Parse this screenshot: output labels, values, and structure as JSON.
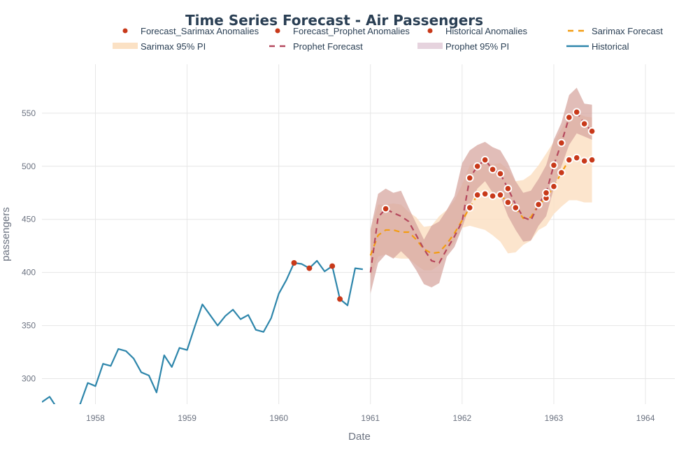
{
  "chart_data": {
    "type": "line",
    "title": "Time Series Forecast - Air Passengers",
    "xlabel": "Date",
    "ylabel": "passengers",
    "xlim": [
      "1957-06",
      "1964-04"
    ],
    "ylim": [
      276,
      596
    ],
    "x_ticks": [
      "1958",
      "1959",
      "1960",
      "1961",
      "1962",
      "1963",
      "1964"
    ],
    "y_ticks": [
      300,
      350,
      400,
      450,
      500,
      550
    ],
    "grid": true,
    "legend_position": "top",
    "legend": [
      {
        "key": "sarimax_anom",
        "label": "Forecast_Sarimax Anomalies",
        "kind": "dot"
      },
      {
        "key": "prophet_anom",
        "label": "Forecast_Prophet Anomalies",
        "kind": "dot"
      },
      {
        "key": "hist_anom",
        "label": "Historical Anomalies",
        "kind": "dot"
      },
      {
        "key": "sarimax",
        "label": "Sarimax Forecast",
        "kind": "dash"
      },
      {
        "key": "sarimax_pi",
        "label": "Sarimax 95% PI",
        "kind": "band"
      },
      {
        "key": "prophet",
        "label": "Prophet Forecast",
        "kind": "dash"
      },
      {
        "key": "prophet_pi",
        "label": "Prophet 95% PI",
        "kind": "band"
      },
      {
        "key": "historical",
        "label": "Historical",
        "kind": "line"
      }
    ],
    "colors": {
      "historical": "#2e86ab",
      "anomaly": "#c8391a",
      "sarimax": "#f39c12",
      "prophet": "#b5485d",
      "sarimax_pi": "#fbe1c4",
      "prophet_pi": "#e6d3de"
    },
    "historical": {
      "start": "1957-06",
      "values": [
        278,
        283,
        272,
        268,
        270,
        276,
        296,
        293,
        314,
        312,
        328,
        326,
        319,
        306,
        303,
        287,
        322,
        311,
        329,
        327,
        349,
        370,
        360,
        350,
        359,
        365,
        356,
        360,
        346,
        344,
        357,
        380,
        393,
        409,
        408,
        404,
        411,
        401,
        406,
        375,
        369,
        404,
        403
      ]
    },
    "historical_anomalies": [
      {
        "x": "1960-03",
        "y": 409
      },
      {
        "x": "1960-05",
        "y": 404
      },
      {
        "x": "1960-08",
        "y": 406
      },
      {
        "x": "1960-09",
        "y": 375
      }
    ],
    "forecast_start": "1961-01",
    "sarimax_forecast": [
      416,
      435,
      440,
      440,
      438,
      438,
      431,
      422,
      418,
      419,
      427,
      437,
      449,
      461,
      473,
      474,
      472,
      473,
      466,
      461,
      451,
      452,
      464,
      470,
      481,
      494,
      506,
      508,
      505,
      506
    ],
    "sarimax_lower": [
      395,
      415,
      417,
      414,
      413,
      413,
      407,
      402,
      402,
      407,
      418,
      429,
      442,
      444,
      442,
      440,
      435,
      429,
      418,
      419,
      426,
      430,
      440,
      444,
      455,
      462,
      468,
      468,
      466,
      466
    ],
    "sarimax_upper": [
      441,
      464,
      464,
      465,
      464,
      457,
      452,
      443,
      444,
      453,
      459,
      468,
      483,
      501,
      504,
      504,
      502,
      503,
      497,
      486,
      487,
      492,
      501,
      512,
      523,
      535,
      547,
      550,
      547,
      546
    ],
    "prophet_forecast": [
      400,
      452,
      460,
      456,
      453,
      448,
      435,
      422,
      411,
      409,
      422,
      434,
      448,
      489,
      500,
      506,
      497,
      493,
      479,
      464,
      452,
      449,
      464,
      475,
      501,
      522,
      546,
      551,
      540,
      533
    ],
    "prophet_lower": [
      380,
      409,
      417,
      413,
      420,
      413,
      402,
      389,
      386,
      390,
      415,
      424,
      442,
      463,
      479,
      486,
      475,
      472,
      453,
      440,
      429,
      430,
      444,
      453,
      479,
      500,
      520,
      531,
      528,
      525
    ],
    "prophet_upper": [
      440,
      474,
      479,
      475,
      477,
      461,
      446,
      431,
      444,
      448,
      459,
      472,
      503,
      515,
      520,
      523,
      518,
      515,
      503,
      486,
      475,
      477,
      488,
      501,
      525,
      541,
      567,
      574,
      559,
      558
    ],
    "sarimax_anomaly_months": [
      "1962-02",
      "1962-03",
      "1962-04",
      "1962-05",
      "1962-06",
      "1962-07",
      "1962-08",
      "1962-11",
      "1962-12",
      "1963-01",
      "1963-02",
      "1963-03",
      "1963-04",
      "1963-05",
      "1963-06"
    ],
    "prophet_anomaly_months": [
      "1961-03",
      "1962-02",
      "1962-03",
      "1962-04",
      "1962-05",
      "1962-06",
      "1962-07",
      "1962-12",
      "1963-01",
      "1963-02",
      "1963-03",
      "1963-04",
      "1963-05",
      "1963-06"
    ]
  }
}
